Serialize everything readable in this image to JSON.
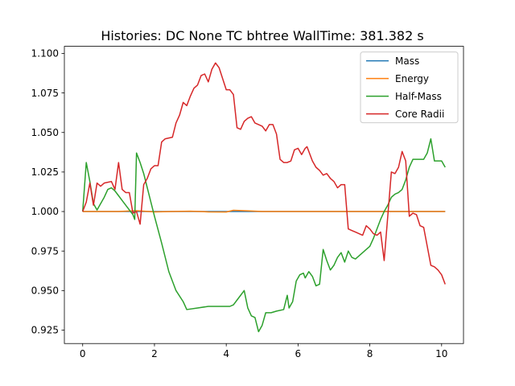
{
  "chart_data": {
    "type": "line",
    "title": "Histories: DC None TC bhtree WallTime: 381.382 s",
    "xlabel": "",
    "ylabel": "",
    "xlim": [
      -0.51,
      10.61
    ],
    "ylim": [
      0.9165,
      1.1045
    ],
    "xticks": [
      0,
      2,
      4,
      6,
      8,
      10
    ],
    "xtick_labels": [
      "0",
      "2",
      "4",
      "6",
      "8",
      "10"
    ],
    "yticks": [
      0.925,
      0.95,
      0.975,
      1.0,
      1.025,
      1.05,
      1.075,
      1.1
    ],
    "ytick_labels": [
      "0.925",
      "0.950",
      "0.975",
      "1.000",
      "1.025",
      "1.050",
      "1.075",
      "1.100"
    ],
    "grid": false,
    "legend_position": "top-right",
    "series": [
      {
        "name": "Mass",
        "color": "#1f77b4",
        "points": [
          [
            0,
            1.0
          ],
          [
            1.0,
            1.0
          ],
          [
            2.0,
            1.0
          ],
          [
            3.0,
            1.0
          ],
          [
            4.0,
            1.0
          ],
          [
            5.0,
            1.0
          ],
          [
            6.0,
            1.0
          ],
          [
            7.0,
            1.0
          ],
          [
            8.0,
            1.0
          ],
          [
            9.0,
            1.0
          ],
          [
            10.1,
            1.0
          ]
        ]
      },
      {
        "name": "Energy",
        "color": "#ff7f0e",
        "points": [
          [
            0,
            1.0
          ],
          [
            1.0,
            1.0
          ],
          [
            1.5,
            1.0005
          ],
          [
            2.0,
            0.9998
          ],
          [
            2.5,
            1.0
          ],
          [
            3.0,
            1.0002
          ],
          [
            3.5,
            0.9998
          ],
          [
            4.0,
            0.9997
          ],
          [
            4.2,
            1.0008
          ],
          [
            4.5,
            1.0005
          ],
          [
            5.0,
            1.0
          ],
          [
            5.5,
            1.0
          ],
          [
            6.0,
            1.0
          ],
          [
            6.5,
            1.0
          ],
          [
            7.0,
            1.0
          ],
          [
            7.5,
            1.0
          ],
          [
            8.0,
            1.0
          ],
          [
            8.5,
            1.0
          ],
          [
            9.0,
            1.0
          ],
          [
            9.5,
            1.0
          ],
          [
            10.1,
            1.0
          ]
        ]
      },
      {
        "name": "Half-Mass",
        "color": "#2ca02c",
        "points": [
          [
            0,
            1.0
          ],
          [
            0.1,
            1.031
          ],
          [
            0.2,
            1.019
          ],
          [
            0.3,
            1.005
          ],
          [
            0.4,
            1.001
          ],
          [
            0.5,
            1.005
          ],
          [
            0.6,
            1.009
          ],
          [
            0.7,
            1.014
          ],
          [
            0.8,
            1.015
          ],
          [
            0.9,
            1.013
          ],
          [
            1.0,
            1.01
          ],
          [
            1.1,
            1.007
          ],
          [
            1.2,
            1.004
          ],
          [
            1.3,
            1.001
          ],
          [
            1.4,
            0.998
          ],
          [
            1.45,
            0.995
          ],
          [
            1.5,
            1.037
          ],
          [
            1.6,
            1.031
          ],
          [
            1.7,
            1.024
          ],
          [
            1.8,
            1.015
          ],
          [
            1.9,
            1.006
          ],
          [
            2.0,
            0.997
          ],
          [
            2.2,
            0.98
          ],
          [
            2.4,
            0.962
          ],
          [
            2.6,
            0.95
          ],
          [
            2.8,
            0.943
          ],
          [
            2.9,
            0.938
          ],
          [
            3.2,
            0.939
          ],
          [
            3.5,
            0.94
          ],
          [
            3.8,
            0.94
          ],
          [
            4.1,
            0.94
          ],
          [
            4.2,
            0.941
          ],
          [
            4.3,
            0.944
          ],
          [
            4.4,
            0.947
          ],
          [
            4.5,
            0.95
          ],
          [
            4.6,
            0.939
          ],
          [
            4.7,
            0.934
          ],
          [
            4.8,
            0.933
          ],
          [
            4.9,
            0.924
          ],
          [
            5.0,
            0.928
          ],
          [
            5.1,
            0.936
          ],
          [
            5.25,
            0.936
          ],
          [
            5.4,
            0.937
          ],
          [
            5.6,
            0.938
          ],
          [
            5.7,
            0.947
          ],
          [
            5.75,
            0.939
          ],
          [
            5.85,
            0.943
          ],
          [
            5.95,
            0.956
          ],
          [
            6.05,
            0.96
          ],
          [
            6.15,
            0.961
          ],
          [
            6.2,
            0.958
          ],
          [
            6.3,
            0.962
          ],
          [
            6.4,
            0.959
          ],
          [
            6.5,
            0.953
          ],
          [
            6.6,
            0.954
          ],
          [
            6.7,
            0.976
          ],
          [
            6.8,
            0.969
          ],
          [
            6.9,
            0.963
          ],
          [
            7.0,
            0.966
          ],
          [
            7.1,
            0.971
          ],
          [
            7.2,
            0.974
          ],
          [
            7.3,
            0.968
          ],
          [
            7.4,
            0.975
          ],
          [
            7.5,
            0.971
          ],
          [
            7.6,
            0.97
          ],
          [
            7.7,
            0.972
          ],
          [
            7.8,
            0.974
          ],
          [
            7.9,
            0.976
          ],
          [
            8.0,
            0.978
          ],
          [
            8.1,
            0.983
          ],
          [
            8.2,
            0.989
          ],
          [
            8.3,
            0.995
          ],
          [
            8.4,
            1.0
          ],
          [
            8.5,
            1.004
          ],
          [
            8.6,
            1.009
          ],
          [
            8.7,
            1.011
          ],
          [
            8.8,
            1.012
          ],
          [
            8.9,
            1.014
          ],
          [
            9.0,
            1.02
          ],
          [
            9.1,
            1.028
          ],
          [
            9.2,
            1.033
          ],
          [
            9.3,
            1.033
          ],
          [
            9.4,
            1.033
          ],
          [
            9.5,
            1.033
          ],
          [
            9.6,
            1.037
          ],
          [
            9.7,
            1.046
          ],
          [
            9.8,
            1.032
          ],
          [
            10.0,
            1.032
          ],
          [
            10.1,
            1.028
          ]
        ]
      },
      {
        "name": "Core Radii",
        "color": "#d62728",
        "points": [
          [
            0,
            1.0
          ],
          [
            0.1,
            1.006
          ],
          [
            0.2,
            1.018
          ],
          [
            0.3,
            1.004
          ],
          [
            0.4,
            1.018
          ],
          [
            0.5,
            1.016
          ],
          [
            0.6,
            1.018
          ],
          [
            0.8,
            1.019
          ],
          [
            0.9,
            1.014
          ],
          [
            1.0,
            1.031
          ],
          [
            1.1,
            1.014
          ],
          [
            1.2,
            1.012
          ],
          [
            1.3,
            1.012
          ],
          [
            1.4,
            0.999
          ],
          [
            1.5,
            1.0
          ],
          [
            1.6,
            0.992
          ],
          [
            1.7,
            1.017
          ],
          [
            1.8,
            1.021
          ],
          [
            1.9,
            1.027
          ],
          [
            2.0,
            1.029
          ],
          [
            2.1,
            1.029
          ],
          [
            2.2,
            1.044
          ],
          [
            2.3,
            1.046
          ],
          [
            2.5,
            1.047
          ],
          [
            2.6,
            1.056
          ],
          [
            2.7,
            1.061
          ],
          [
            2.8,
            1.069
          ],
          [
            2.9,
            1.067
          ],
          [
            3.0,
            1.073
          ],
          [
            3.1,
            1.078
          ],
          [
            3.2,
            1.08
          ],
          [
            3.3,
            1.086
          ],
          [
            3.4,
            1.087
          ],
          [
            3.5,
            1.082
          ],
          [
            3.6,
            1.09
          ],
          [
            3.7,
            1.094
          ],
          [
            3.8,
            1.091
          ],
          [
            3.9,
            1.084
          ],
          [
            4.0,
            1.077
          ],
          [
            4.1,
            1.077
          ],
          [
            4.2,
            1.074
          ],
          [
            4.3,
            1.053
          ],
          [
            4.4,
            1.052
          ],
          [
            4.5,
            1.057
          ],
          [
            4.6,
            1.059
          ],
          [
            4.7,
            1.06
          ],
          [
            4.8,
            1.056
          ],
          [
            5.0,
            1.054
          ],
          [
            5.1,
            1.051
          ],
          [
            5.2,
            1.055
          ],
          [
            5.3,
            1.055
          ],
          [
            5.4,
            1.049
          ],
          [
            5.5,
            1.033
          ],
          [
            5.6,
            1.031
          ],
          [
            5.7,
            1.031
          ],
          [
            5.8,
            1.032
          ],
          [
            5.9,
            1.039
          ],
          [
            6.0,
            1.04
          ],
          [
            6.1,
            1.036
          ],
          [
            6.2,
            1.04
          ],
          [
            6.25,
            1.041
          ],
          [
            6.4,
            1.032
          ],
          [
            6.5,
            1.028
          ],
          [
            6.6,
            1.026
          ],
          [
            6.7,
            1.023
          ],
          [
            6.8,
            1.024
          ],
          [
            6.9,
            1.021
          ],
          [
            7.0,
            1.019
          ],
          [
            7.1,
            1.015
          ],
          [
            7.2,
            1.017
          ],
          [
            7.3,
            1.017
          ],
          [
            7.4,
            0.989
          ],
          [
            7.5,
            0.988
          ],
          [
            7.6,
            0.987
          ],
          [
            7.7,
            0.986
          ],
          [
            7.8,
            0.985
          ],
          [
            7.9,
            0.991
          ],
          [
            8.0,
            0.989
          ],
          [
            8.1,
            0.986
          ],
          [
            8.2,
            0.985
          ],
          [
            8.3,
            0.987
          ],
          [
            8.4,
            0.969
          ],
          [
            8.6,
            1.025
          ],
          [
            8.7,
            1.024
          ],
          [
            8.8,
            1.028
          ],
          [
            8.9,
            1.038
          ],
          [
            9.0,
            1.032
          ],
          [
            9.1,
            0.997
          ],
          [
            9.2,
            0.999
          ],
          [
            9.3,
            0.998
          ],
          [
            9.4,
            0.991
          ],
          [
            9.5,
            0.99
          ],
          [
            9.6,
            0.978
          ],
          [
            9.7,
            0.966
          ],
          [
            9.8,
            0.965
          ],
          [
            9.9,
            0.963
          ],
          [
            10.0,
            0.96
          ],
          [
            10.1,
            0.954
          ]
        ]
      }
    ]
  }
}
